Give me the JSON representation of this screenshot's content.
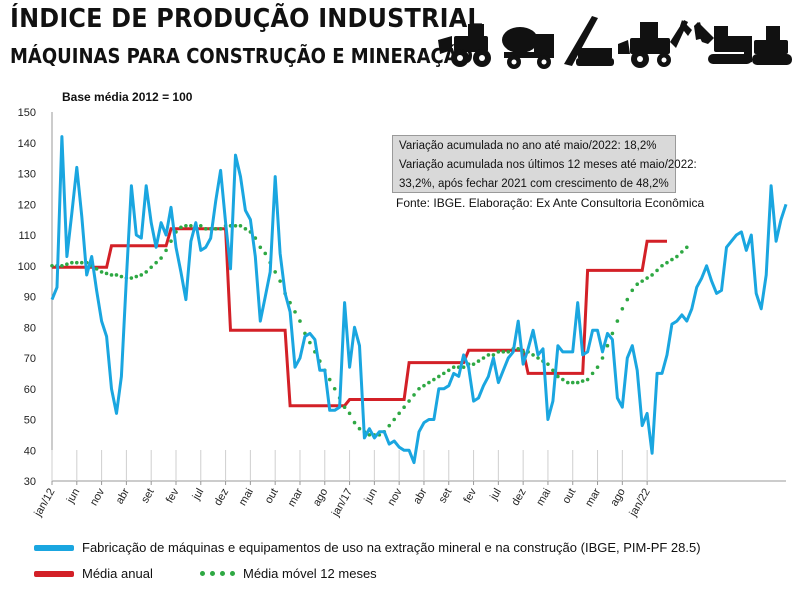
{
  "header": {
    "title": "ÍNDICE DE PRODUÇÃO INDUSTRIAL",
    "subtitle": "MÁQUINAS PARA CONSTRUÇÃO E MINERAÇÃO",
    "base_note": "Base média 2012 = 100",
    "icons": [
      "wheel-loader-icon",
      "concrete-mixer-icon",
      "drilling-rig-icon",
      "backhoe-loader-icon",
      "excavator-icon",
      "bulldozer-icon"
    ]
  },
  "infobox": {
    "lines": [
      "Variação acumulada no ano até maio/2022: 18,2%",
      "Variação acumulada nos últimos 12 meses até maio/2022:",
      "33,2%, após fechar 2021 com crescimento de 48,2%"
    ]
  },
  "source": "Fonte: IBGE. Elaboração: Ex Ante Consultoria Econômica",
  "legend": {
    "series1": "Fabricação de máquinas e equipamentos de uso na extração mineral e na construção (IBGE, PIM-PF 28.5)",
    "series2": "Média anual",
    "series3": "Média móvel 12 meses"
  },
  "colors": {
    "monthly": "#1aa6e0",
    "annual": "#d32027",
    "moving": "#2ea843",
    "grid": "#c8c8c8"
  },
  "chart_data": {
    "type": "line",
    "ylim": [
      30,
      150
    ],
    "yticks": [
      30,
      40,
      50,
      60,
      70,
      80,
      90,
      100,
      110,
      120,
      130,
      140,
      150
    ],
    "x_start": "jan/12",
    "x_end": "mai/22",
    "xtick_labels": [
      "jan/12",
      "jun",
      "nov",
      "abr",
      "set",
      "fev",
      "jul",
      "dez",
      "mai",
      "out",
      "mar",
      "ago",
      "jan/17",
      "jun",
      "nov",
      "abr",
      "set",
      "fev",
      "jul",
      "dez",
      "mai",
      "out",
      "mar",
      "ago",
      "jan/22"
    ],
    "grid": "vertical",
    "series": [
      {
        "name": "Fabricação de máquinas e equipamentos de uso na extração mineral e na construção (IBGE, PIM-PF 28.5)",
        "values": [
          89,
          93,
          142,
          103,
          117,
          132,
          116,
          97,
          103,
          92,
          82,
          77,
          60,
          52,
          64,
          96,
          126,
          110,
          109,
          126,
          114,
          106,
          114,
          110,
          119,
          106,
          98,
          89,
          108,
          114,
          105,
          106,
          109,
          121,
          131,
          114,
          99,
          136,
          129,
          118,
          115,
          103,
          82,
          90,
          98,
          129,
          104,
          91,
          85,
          67,
          70,
          77,
          78,
          76,
          66,
          66,
          53,
          53,
          54,
          88,
          67,
          80,
          74,
          44,
          47,
          44,
          46,
          46,
          42,
          43,
          41,
          40,
          40,
          36,
          46,
          49,
          50,
          50,
          60,
          60,
          61,
          65,
          64,
          71,
          67,
          56,
          57,
          61,
          64,
          70,
          62,
          66,
          70,
          72,
          82,
          68,
          73,
          79,
          71,
          73,
          50,
          56,
          74,
          72,
          72,
          72,
          88,
          71,
          72,
          79,
          79,
          72,
          78,
          76,
          57,
          54,
          70,
          74,
          66,
          48,
          52,
          39,
          65,
          65,
          71,
          81,
          82,
          84,
          82,
          86,
          93,
          96,
          100,
          95,
          91,
          92,
          106,
          108,
          110,
          111,
          105,
          110,
          91,
          86,
          97,
          126,
          108,
          115,
          120
        ],
        "color": "#1aa6e0"
      },
      {
        "name": "Média anual",
        "values": [
          99.5,
          99.5,
          99.5,
          99.5,
          99.5,
          99.5,
          99.5,
          99.5,
          99.5,
          99.5,
          99.5,
          99.5,
          106.5,
          106.5,
          106.5,
          106.5,
          106.5,
          106.5,
          106.5,
          106.5,
          106.5,
          106.5,
          106.5,
          106.5,
          112,
          112,
          112,
          112,
          112,
          112,
          112,
          112,
          112,
          112,
          112,
          112,
          79,
          79,
          79,
          79,
          79,
          79,
          79,
          79,
          79,
          79,
          79,
          79,
          54.5,
          54.5,
          54.5,
          54.5,
          54.5,
          54.5,
          54.5,
          54.5,
          54.5,
          54.5,
          54.5,
          54.5,
          56.5,
          56.5,
          56.5,
          56.5,
          56.5,
          56.5,
          56.5,
          56.5,
          56.5,
          56.5,
          56.5,
          56.5,
          68.5,
          68.5,
          68.5,
          68.5,
          68.5,
          68.5,
          68.5,
          68.5,
          68.5,
          68.5,
          68.5,
          68.5,
          72.5,
          72.5,
          72.5,
          72.5,
          72.5,
          72.5,
          72.5,
          72.5,
          72.5,
          72.5,
          72.5,
          72.5,
          65,
          65,
          65,
          65,
          65,
          65,
          65,
          65,
          65,
          65,
          65,
          65,
          98.5,
          98.5,
          98.5,
          98.5,
          98.5,
          98.5,
          98.5,
          98.5,
          98.5,
          98.5,
          98.5,
          98.5,
          108,
          108,
          108,
          108,
          108
        ],
        "x_offset": 0,
        "color": "#d32027"
      },
      {
        "name": "Média móvel 12 meses",
        "values": [
          100,
          100,
          100,
          100.5,
          101,
          101,
          101,
          101,
          100,
          99,
          98,
          97.5,
          97,
          97,
          96.5,
          96,
          96,
          96.5,
          97,
          98,
          99.5,
          101,
          102.5,
          105,
          108,
          111,
          112.5,
          113,
          113,
          113,
          113,
          112,
          112,
          112,
          112,
          113,
          113,
          113,
          113,
          112,
          111,
          109,
          106,
          104,
          101,
          98,
          95,
          91,
          88,
          85,
          82,
          78,
          75,
          72,
          69,
          66,
          63,
          60,
          57,
          54,
          52,
          49,
          47,
          46,
          45,
          45,
          45,
          46,
          48,
          50,
          52,
          54,
          56,
          58,
          60,
          61,
          62,
          63,
          64,
          65,
          66,
          67,
          67,
          67,
          68,
          68,
          69,
          70,
          71,
          71,
          72,
          72,
          72,
          73,
          73,
          72,
          72,
          71,
          70,
          69,
          68,
          66,
          64,
          63,
          62,
          62,
          62,
          62.5,
          63,
          65,
          67,
          70,
          74,
          78,
          82,
          86,
          89,
          92,
          94,
          95,
          96,
          97,
          98.5,
          100,
          101,
          102,
          103,
          104.5,
          106
        ],
        "color": "#2ea843"
      }
    ]
  }
}
